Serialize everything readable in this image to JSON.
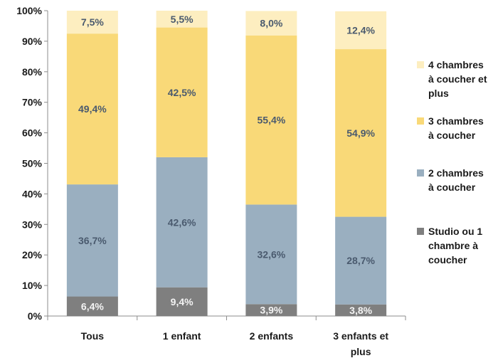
{
  "chart_data": {
    "type": "bar",
    "stacked": true,
    "categories": [
      "Tous",
      "1 enfant",
      "2 enfants",
      "3 enfants et plus"
    ],
    "series": [
      {
        "name": "Studio ou 1 chambre à coucher",
        "color": "#7f7f7f",
        "values": [
          6.4,
          9.4,
          3.9,
          3.8
        ],
        "labels": [
          "6,4%",
          "9,4%",
          "3,9%",
          "3,8%"
        ]
      },
      {
        "name": "2 chambres à coucher",
        "color": "#9aafc0",
        "values": [
          36.7,
          42.6,
          32.6,
          28.7
        ],
        "labels": [
          "36,7%",
          "42,6%",
          "32,6%",
          "28,7%"
        ]
      },
      {
        "name": "3 chambres à coucher",
        "color": "#f9d978",
        "values": [
          49.4,
          42.5,
          55.4,
          54.9
        ],
        "labels": [
          "49,4%",
          "42,5%",
          "55,4%",
          "54,9%"
        ]
      },
      {
        "name": "4 chambres à coucher et plus",
        "color": "#fdeec0",
        "values": [
          7.5,
          5.5,
          8.0,
          12.4
        ],
        "labels": [
          "7,5%",
          "5,5%",
          "8,0%",
          "12,4%"
        ]
      }
    ],
    "ylim": [
      0,
      100
    ],
    "yticks": [
      "0%",
      "10%",
      "20%",
      "30%",
      "40%",
      "50%",
      "60%",
      "70%",
      "80%",
      "90%",
      "100%"
    ],
    "grid": false,
    "legend": "right"
  }
}
